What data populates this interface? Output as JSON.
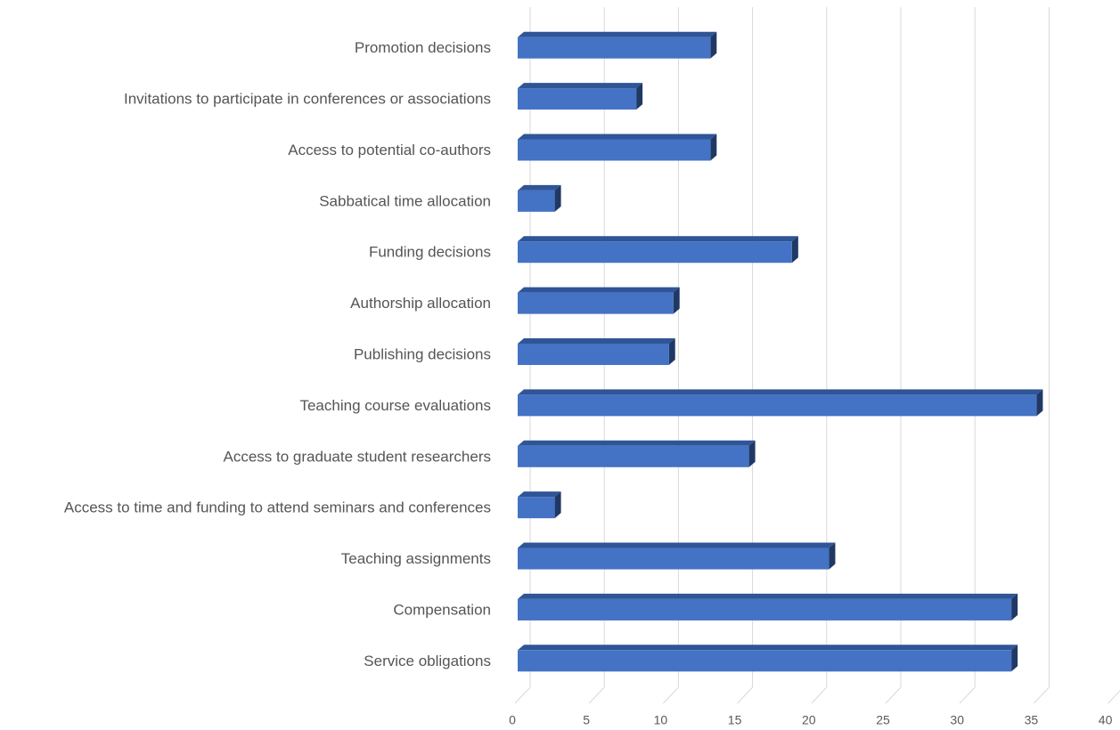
{
  "chart_data": {
    "type": "bar3d_horizontal",
    "categories": [
      "Promotion decisions",
      "Invitations to participate in conferences or associations",
      "Access to potential co-authors",
      "Sabbatical time allocation",
      "Funding decisions",
      "Authorship allocation",
      "Publishing decisions",
      "Teaching course evaluations",
      "Access to graduate student researchers",
      "Access to time and funding to attend seminars and conferences",
      "Teaching assignments",
      "Compensation",
      "Service obligations"
    ],
    "values": [
      13,
      8,
      13,
      2.5,
      18.5,
      10.5,
      10.2,
      35,
      15.6,
      2.5,
      21,
      33.3,
      33.3
    ],
    "color": "#4472c4",
    "xlim": [
      0,
      40
    ],
    "xticks": [
      0,
      5,
      10,
      15,
      20,
      25,
      30,
      35,
      40
    ],
    "grid": true
  }
}
